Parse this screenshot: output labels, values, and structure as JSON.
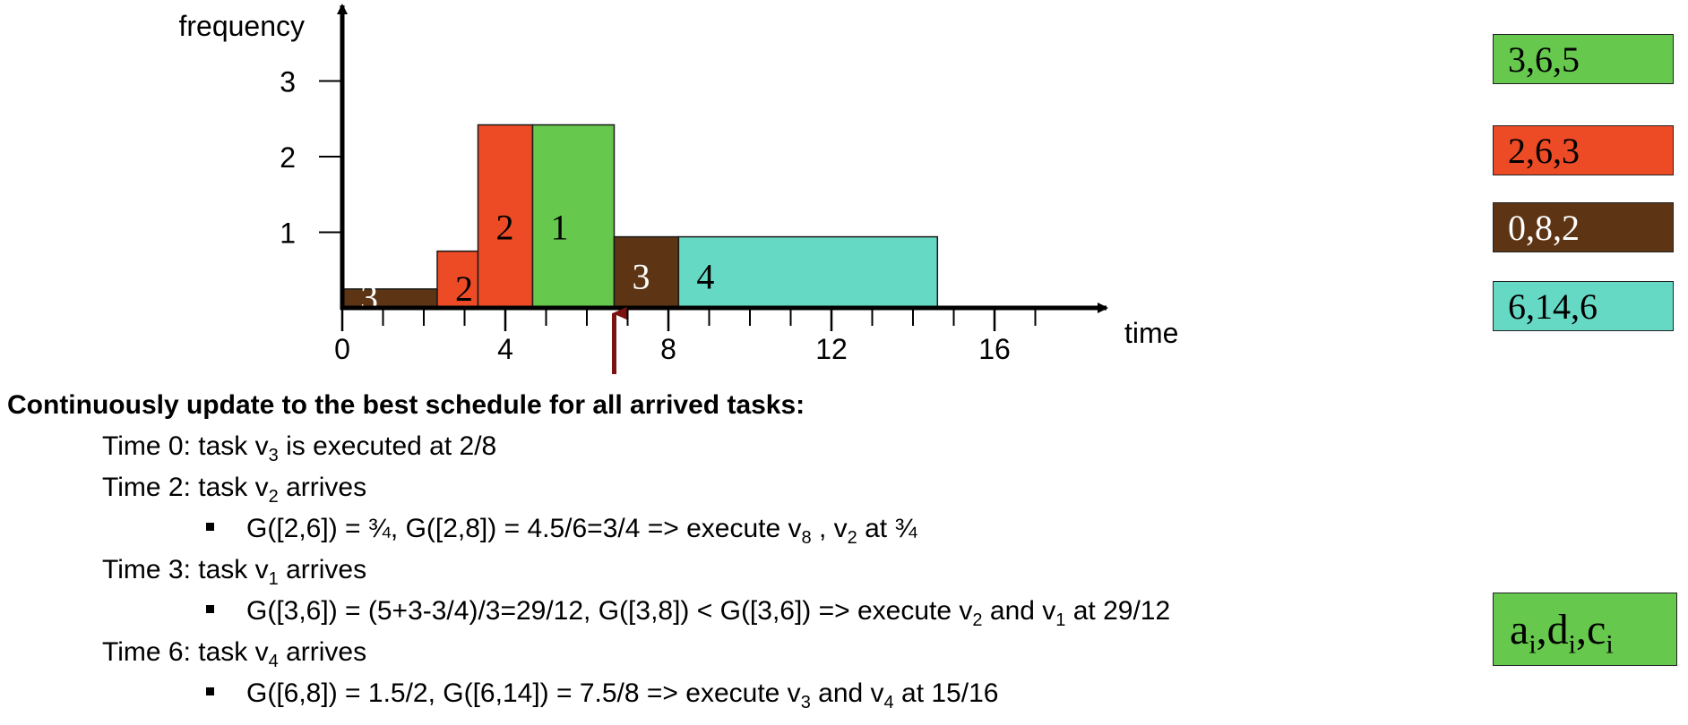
{
  "chart_data": {
    "type": "bar",
    "xlabel": "time",
    "ylabel": "frequency",
    "x_ticks": [
      "0",
      "4",
      "8",
      "12",
      "16"
    ],
    "y_ticks": [
      "1",
      "2",
      "3"
    ],
    "xlim": [
      0,
      19.5
    ],
    "ylim": [
      0,
      3.9
    ],
    "minor_x_ticks": [
      1,
      2,
      3,
      4,
      5,
      6,
      7,
      8,
      9,
      10,
      11,
      12,
      13,
      14,
      15,
      16,
      17
    ],
    "segments": [
      {
        "task": "3",
        "label": "3",
        "start": 0,
        "end": 2.33,
        "freq": 0.25,
        "color": "#5d3515"
      },
      {
        "task": "2",
        "label": "2",
        "start": 2.33,
        "end": 3.33,
        "freq": 0.75,
        "color": "#ec4b26"
      },
      {
        "task": "2",
        "label": "2",
        "start": 3.33,
        "end": 4.67,
        "freq": 2.42,
        "color": "#ec4b26"
      },
      {
        "task": "1",
        "label": "1",
        "start": 4.67,
        "end": 6.67,
        "freq": 2.42,
        "color": "#66c84c"
      },
      {
        "task": "3",
        "label": "3",
        "start": 6.67,
        "end": 8.25,
        "freq": 0.94,
        "color": "#5d3515"
      },
      {
        "task": "4",
        "label": "4",
        "start": 8.25,
        "end": 14.6,
        "freq": 0.94,
        "color": "#66d9c5"
      }
    ],
    "arrow_marker_time": 6.67,
    "arrow_color": "#7a1212"
  },
  "legend": {
    "items": [
      {
        "label": "3,6,5",
        "color": "#66c84c",
        "text_color": "#000000"
      },
      {
        "label": "2,6,3",
        "color": "#ec4b26",
        "text_color": "#000000"
      },
      {
        "label": "0,8,2",
        "color": "#5d3515",
        "text_color": "#ffffff"
      },
      {
        "label": "6,14,6",
        "color": "#66d9c5",
        "text_color": "#000000"
      }
    ],
    "key": {
      "a": "a",
      "d": "d",
      "c": "c",
      "sub": "i",
      "sep": ","
    }
  },
  "text": {
    "heading": "Continuously update to the best schedule for all arrived tasks:",
    "l1": {
      "pre": "Time 0: task v",
      "sub1": "3",
      "post": " is executed at 2/8"
    },
    "l2": {
      "pre": "Time 2: task v",
      "sub1": "2",
      "post": " arrives"
    },
    "l3": {
      "pre": "G([2,6]) = ¾, G([2,8]) = 4.5/6=3/4   => execute v",
      "sub1": "8",
      "mid": " , v",
      "sub2": "2",
      "post": " at ¾"
    },
    "l4": {
      "pre": "Time 3: task v",
      "sub1": "1",
      "post": " arrives"
    },
    "l5": {
      "pre": "G([3,6]) = (5+3-3/4)/3=29/12, G([3,8]) < G([3,6]) => execute v",
      "sub1": "2",
      "mid": " and v",
      "sub2": "1",
      "post": " at 29/12"
    },
    "l6": {
      "pre": "Time 6: task v",
      "sub1": "4",
      "post": " arrives"
    },
    "l7": {
      "pre": "G([6,8]) = 1.5/2, G([6,14]) = 7.5/8 => execute v",
      "sub1": "3",
      "mid": " and v",
      "sub2": "4",
      "post": " at 15/16"
    }
  }
}
